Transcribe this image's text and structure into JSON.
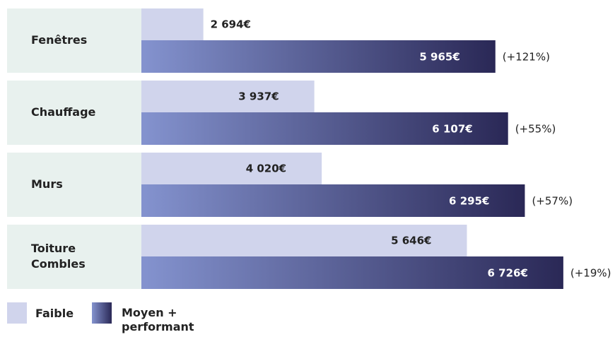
{
  "chart_data": {
    "type": "bar",
    "orientation": "horizontal",
    "categories": [
      "Fenêtres",
      "Chauffage",
      "Murs",
      "Toiture Combles"
    ],
    "series": [
      {
        "name": "Faible",
        "color": "#d0d4ec",
        "values": [
          2694,
          3937,
          4020,
          5646
        ],
        "value_labels": [
          "2 694€",
          "3 937€",
          "4 020€",
          "5 646€"
        ]
      },
      {
        "name": "Moyen + performant",
        "color": "#2a2856",
        "gradient_from": "#8493cf",
        "values": [
          5965,
          6107,
          6295,
          6726
        ],
        "value_labels": [
          "5 965€",
          "6 107€",
          "6 295€",
          "6 726€"
        ]
      }
    ],
    "annotations": [
      "(+121%)",
      "(+55%)",
      "(+57%)",
      "(+19%)"
    ],
    "xlim": [
      2000,
      7000
    ]
  }
}
